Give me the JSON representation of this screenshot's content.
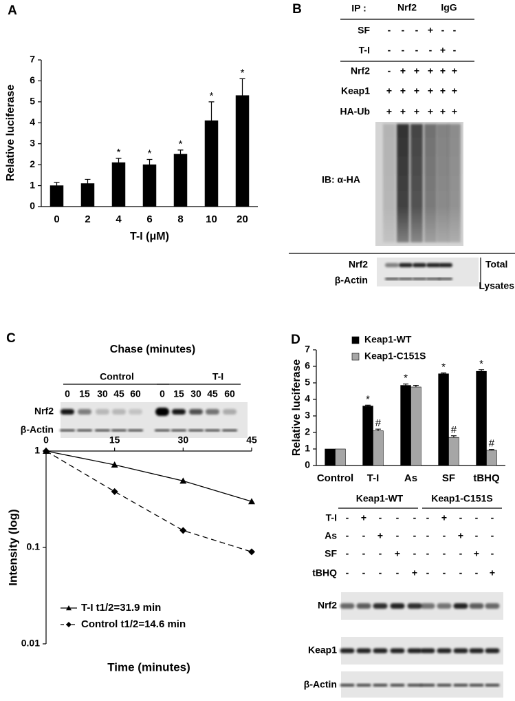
{
  "labels": [
    "A",
    "B",
    "C",
    "D"
  ],
  "blot_b": {
    "ip_label": "IP :",
    "ip_groups": [
      "Nrf2",
      "IgG"
    ],
    "rows": [
      {
        "label": "SF",
        "signs": [
          "-",
          "-",
          "-",
          "+",
          "-",
          "-"
        ]
      },
      {
        "label": "T-I",
        "signs": [
          "-",
          "-",
          "-",
          "-",
          "+",
          "-"
        ]
      },
      {
        "label": "Nrf2",
        "signs": [
          "-",
          "+",
          "+",
          "+",
          "+",
          "+"
        ]
      },
      {
        "label": "Keap1",
        "signs": [
          "+",
          "+",
          "+",
          "+",
          "+",
          "+"
        ]
      },
      {
        "label": "HA-Ub",
        "signs": [
          "+",
          "+",
          "+",
          "+",
          "+",
          "+"
        ]
      }
    ],
    "ib_label": "IB: α-HA",
    "lysate_rows": [
      "Nrf2",
      "β-Actin"
    ],
    "lysate_labels": [
      "Total",
      "Lysates"
    ]
  },
  "blot_c": {
    "title": "Chase (minutes)",
    "groups": [
      "Control",
      "T-I"
    ],
    "lanes": [
      [
        0,
        15,
        30,
        45,
        60
      ],
      [
        0,
        15,
        30,
        45,
        60
      ]
    ],
    "rows": [
      "Nrf2",
      "β-Actin"
    ]
  },
  "blot_d": {
    "groups": [
      "Keap1-WT",
      "Keap1-C151S"
    ],
    "rows": [
      {
        "label": "T-I",
        "signs": [
          "-",
          "+",
          "-",
          "-",
          "-",
          "-",
          "+",
          "-",
          "-",
          "-"
        ]
      },
      {
        "label": "As",
        "signs": [
          "-",
          "-",
          "+",
          "-",
          "-",
          "-",
          "-",
          "+",
          "-",
          "-"
        ]
      },
      {
        "label": "SF",
        "signs": [
          "-",
          "-",
          "-",
          "+",
          "-",
          "-",
          "-",
          "-",
          "+",
          "-"
        ]
      },
      {
        "label": "tBHQ",
        "signs": [
          "-",
          "-",
          "-",
          "-",
          "+",
          "-",
          "-",
          "-",
          "-",
          "+"
        ]
      }
    ],
    "blots": [
      "Nrf2",
      "Keap1",
      "β-Actin"
    ]
  },
  "chart_data": [
    {
      "type": "bar",
      "y_label": "Relative luciferase",
      "x_label": "T-I (μM)",
      "categories": [
        "0",
        "2",
        "4",
        "6",
        "8",
        "10",
        "20"
      ],
      "values": [
        1.0,
        1.1,
        2.1,
        2.0,
        2.5,
        4.1,
        5.3
      ],
      "errors": [
        0.15,
        0.2,
        0.2,
        0.25,
        0.2,
        0.9,
        0.8
      ],
      "annotations": [
        null,
        null,
        "*",
        "*",
        "*",
        "*",
        "*"
      ],
      "color": "#000000",
      "ylim": [
        0,
        7
      ],
      "yticks": [
        0,
        1,
        2,
        3,
        4,
        5,
        6,
        7
      ]
    },
    {
      "type": "line",
      "y_label": "Intensity (log)",
      "x_label": "Time (minutes)",
      "log_y": true,
      "xlim": [
        0,
        45
      ],
      "xticks": [
        0,
        15,
        30,
        45
      ],
      "ylim": [
        0.01,
        1
      ],
      "yticks": [
        0.01,
        0.1,
        1
      ],
      "legend": "lower left",
      "series": [
        {
          "name": "T-I t1/2=31.9 min",
          "color": "#000000",
          "marker": "triangle",
          "line_style": "solid",
          "x": [
            0,
            15,
            30,
            45
          ],
          "values": [
            1.0,
            0.72,
            0.49,
            0.3
          ]
        },
        {
          "name": "Control t1/2=14.6 min",
          "color": "#000000",
          "marker": "diamond",
          "line_style": "dashed",
          "x": [
            0,
            15,
            30,
            45
          ],
          "values": [
            1.0,
            0.38,
            0.15,
            0.09
          ]
        }
      ]
    },
    {
      "type": "bar",
      "y_label": "Relative luciferase",
      "categories": [
        "Control",
        "T-I",
        "As",
        "SF",
        "tBHQ"
      ],
      "ylim": [
        0,
        7
      ],
      "yticks": [
        0,
        1,
        2,
        3,
        4,
        5,
        6,
        7
      ],
      "legend": "upper left",
      "series": [
        {
          "name": "Keap1-WT",
          "color": "#000000",
          "values": [
            1.0,
            3.6,
            4.85,
            5.55,
            5.7
          ],
          "errors": [
            0.0,
            0.05,
            0.08,
            0.05,
            0.1
          ],
          "annotations": [
            null,
            "*",
            "*",
            "*",
            "*"
          ]
        },
        {
          "name": "Keap1-C151S",
          "color": "#a6a6a6",
          "values": [
            1.0,
            2.1,
            4.75,
            1.7,
            0.92
          ],
          "errors": [
            0.0,
            0.1,
            0.1,
            0.1,
            0.05
          ],
          "annotations": [
            null,
            "#",
            null,
            "#",
            "#"
          ]
        }
      ]
    }
  ]
}
